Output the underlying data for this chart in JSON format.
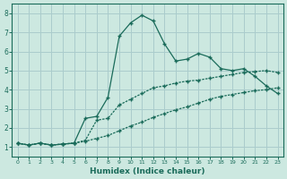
{
  "xlabel": "Humidex (Indice chaleur)",
  "xlim": [
    -0.5,
    23.5
  ],
  "ylim": [
    0.5,
    8.5
  ],
  "xticks": [
    0,
    1,
    2,
    3,
    4,
    5,
    6,
    7,
    8,
    9,
    10,
    11,
    12,
    13,
    14,
    15,
    16,
    17,
    18,
    19,
    20,
    21,
    22,
    23
  ],
  "yticks": [
    1,
    2,
    3,
    4,
    5,
    6,
    7,
    8
  ],
  "bg_color": "#cce8e0",
  "grid_color": "#aacccc",
  "line_color": "#1a6b5a",
  "series1_x": [
    0,
    1,
    2,
    3,
    4,
    5,
    6,
    7,
    8,
    9,
    10,
    11,
    12,
    13,
    14,
    15,
    16,
    17,
    18,
    19,
    20,
    21,
    22,
    23
  ],
  "series1_y": [
    1.2,
    1.1,
    1.2,
    1.1,
    1.15,
    1.2,
    2.5,
    2.6,
    3.6,
    6.8,
    7.5,
    7.9,
    7.6,
    6.4,
    5.5,
    5.6,
    5.9,
    5.7,
    5.1,
    5.0,
    5.1,
    4.7,
    4.2,
    3.8
  ],
  "series2_x": [
    0,
    1,
    2,
    3,
    4,
    5,
    6,
    7,
    8,
    9,
    10,
    11,
    12,
    13,
    14,
    15,
    16,
    17,
    18,
    19,
    20,
    21,
    22,
    23
  ],
  "series2_y": [
    1.2,
    1.1,
    1.2,
    1.1,
    1.15,
    1.2,
    1.35,
    2.4,
    2.5,
    3.2,
    3.5,
    3.8,
    4.1,
    4.2,
    4.35,
    4.45,
    4.5,
    4.6,
    4.7,
    4.8,
    4.9,
    4.95,
    5.0,
    4.9
  ],
  "series3_x": [
    0,
    1,
    2,
    3,
    4,
    5,
    6,
    7,
    8,
    9,
    10,
    11,
    12,
    13,
    14,
    15,
    16,
    17,
    18,
    19,
    20,
    21,
    22,
    23
  ],
  "series3_y": [
    1.2,
    1.1,
    1.2,
    1.1,
    1.15,
    1.2,
    1.3,
    1.45,
    1.6,
    1.85,
    2.1,
    2.3,
    2.55,
    2.75,
    2.95,
    3.1,
    3.3,
    3.5,
    3.65,
    3.75,
    3.85,
    3.95,
    4.0,
    4.1
  ]
}
